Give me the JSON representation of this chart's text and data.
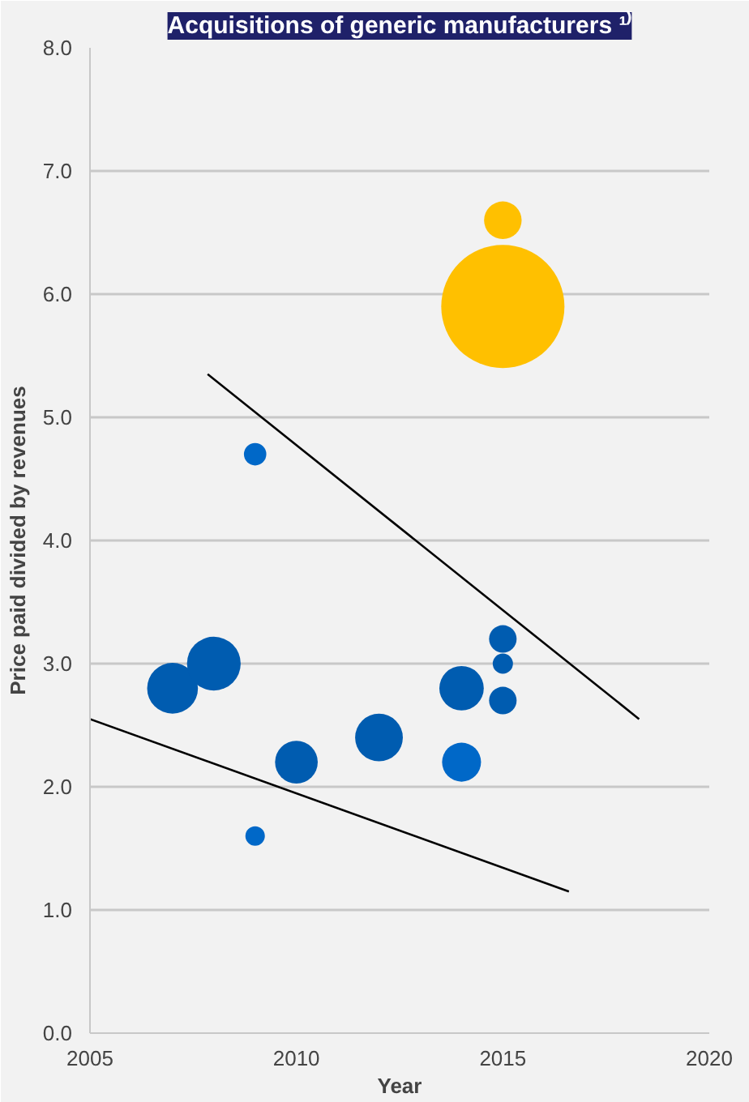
{
  "chart_data": {
    "type": "bubble",
    "title": "Acquisitions of generic manufacturers ¹⁾",
    "xlabel": "Year",
    "ylabel": "Price paid divided by revenues",
    "xlim": [
      2005,
      2020
    ],
    "xticks": [
      2005,
      2010,
      2015,
      2020
    ],
    "ylim": [
      0,
      8
    ],
    "yticks": [
      {
        "value": 0,
        "label": "0.0"
      },
      {
        "value": 1,
        "label": "1.0"
      },
      {
        "value": 2,
        "label": "2.0"
      },
      {
        "value": 3,
        "label": "3.0"
      },
      {
        "value": 4,
        "label": "4.0"
      },
      {
        "value": 5,
        "label": "5.0"
      },
      {
        "value": 6,
        "label": "6.0"
      },
      {
        "value": 7,
        "label": "7.0"
      },
      {
        "value": 8,
        "label": "8.0"
      }
    ],
    "grid": "y",
    "series": [
      {
        "color": "#005cb0",
        "x": [
          2007,
          2008,
          2009,
          2009,
          2010,
          2012,
          2014,
          2014,
          2015,
          2015,
          2015
        ],
        "values": [
          2.8,
          3.0,
          4.7,
          1.6,
          2.2,
          2.4,
          2.8,
          2.2,
          3.2,
          3.0,
          2.7
        ],
        "sizes": [
          0.17,
          0.19,
          0.033,
          0.025,
          0.12,
          0.15,
          0.13,
          0.1,
          0.05,
          0.027,
          0.05
        ],
        "colors": [
          "#005cb0",
          "#005cb0",
          "#0068c8",
          "#0068c8",
          "#005cb0",
          "#005cb0",
          "#005cb0",
          "#0068c8",
          "#005cb0",
          "#005cb0",
          "#005cb0"
        ]
      },
      {
        "color": "#ffc000",
        "x": [
          2015,
          2015
        ],
        "values": [
          6.6,
          5.9
        ],
        "sizes": [
          0.093,
          1
        ]
      },
      {
        "type": "line",
        "color": "#000000",
        "x": [
          2007.85,
          2018.3
        ],
        "values": [
          5.35,
          2.55
        ]
      },
      {
        "type": "line",
        "color": "#000000",
        "x": [
          2005,
          2016.6
        ],
        "values": [
          2.55,
          1.15
        ]
      }
    ]
  }
}
